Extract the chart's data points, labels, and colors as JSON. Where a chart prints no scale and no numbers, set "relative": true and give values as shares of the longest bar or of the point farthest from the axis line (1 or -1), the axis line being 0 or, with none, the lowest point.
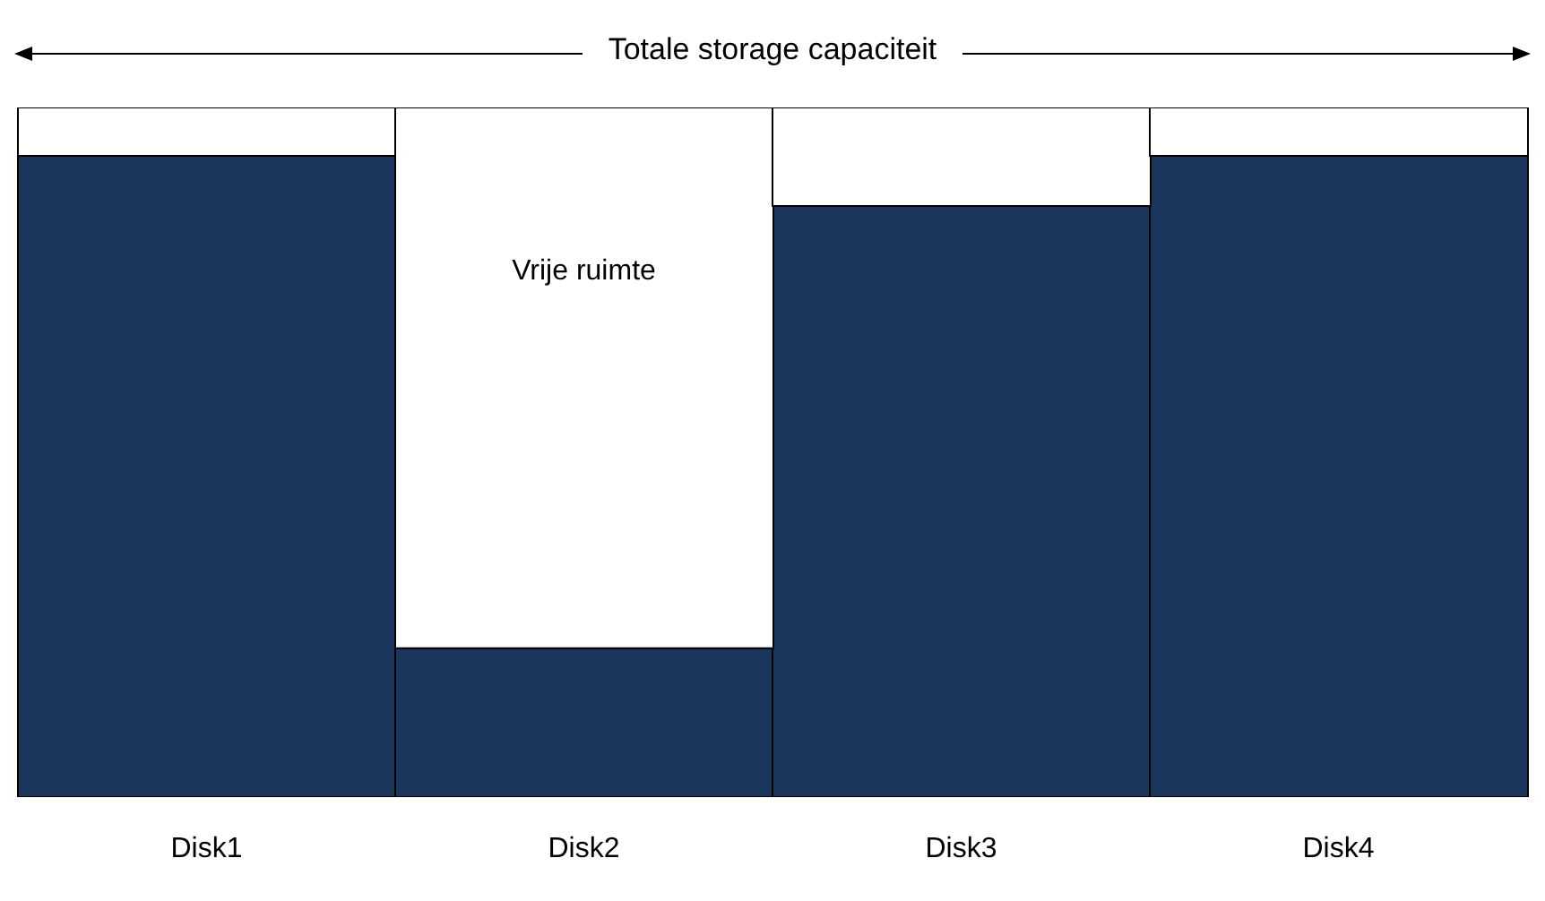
{
  "chart_data": {
    "type": "bar",
    "title": "Totale storage capaciteit",
    "relative": true,
    "stacked": true,
    "categories": [
      "Disk1",
      "Disk2",
      "Disk3",
      "Disk4"
    ],
    "series": [
      {
        "color": "#1b365d",
        "values": [
          0.93,
          0.216,
          0.857,
          0.93
        ]
      },
      {
        "name": "Vrije ruimte",
        "color": "#ffffff",
        "values": [
          0.07,
          0.784,
          0.143,
          0.07
        ]
      }
    ]
  }
}
